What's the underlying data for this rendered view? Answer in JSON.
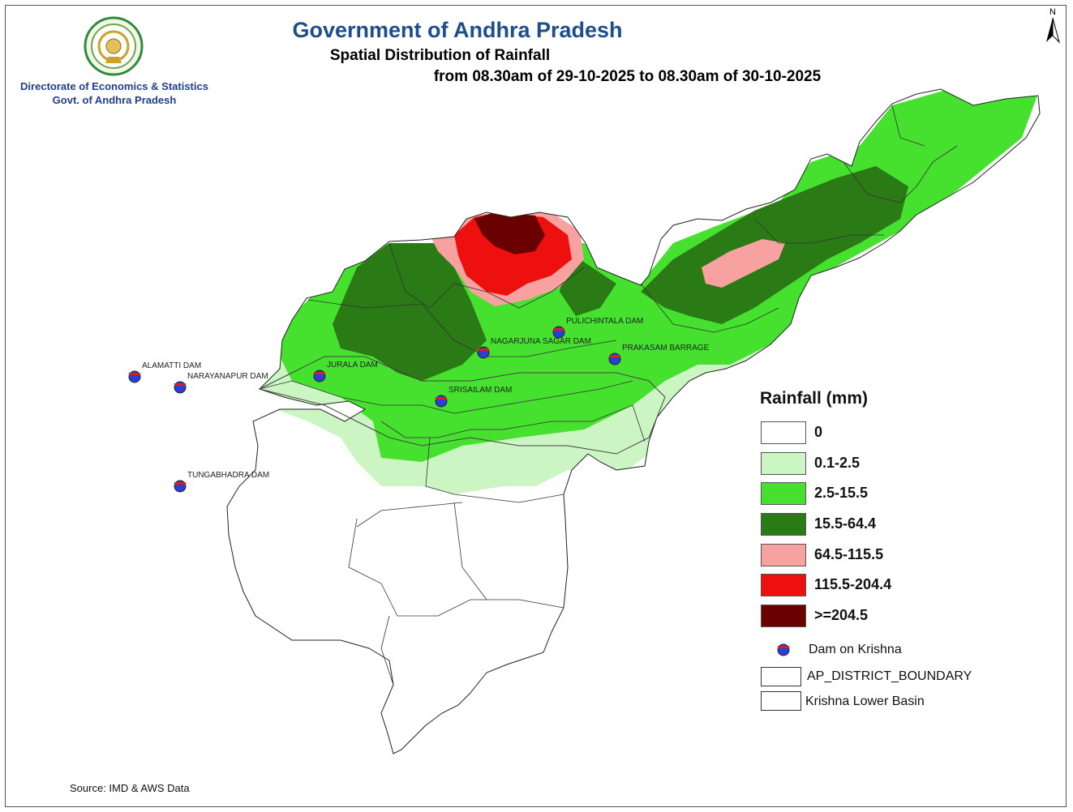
{
  "header": {
    "title": "Government of Andhra Pradesh",
    "subtitle": "Spatial Distribution of Rainfall",
    "period": "from 08.30am of 29-10-2025 to 08.30am of 30-10-2025"
  },
  "organization": {
    "line1": "Directorate of Economics & Statistics",
    "line2": "Govt. of Andhra Pradesh"
  },
  "north_arrow": {
    "label": "N"
  },
  "legend": {
    "title": "Rainfall (mm)",
    "classes": [
      {
        "label": "0",
        "color": "#ffffff"
      },
      {
        "label": "0.1-2.5",
        "color": "#ccf5c4"
      },
      {
        "label": "2.5-15.5",
        "color": "#46e02e"
      },
      {
        "label": "15.5-64.4",
        "color": "#2a7a16"
      },
      {
        "label": "64.5-115.5",
        "color": "#f7a1a0"
      },
      {
        "label": "115.5-204.4",
        "color": "#ee0f0f"
      },
      {
        "label": ">=204.5",
        "color": "#6b0000"
      }
    ],
    "dam_symbol_label": "Dam on Krishna",
    "district_boundary_label": "AP_DISTRICT_BOUNDARY",
    "basin_label": "Krishna Lower Basin"
  },
  "dams": [
    {
      "name": "ALAMATTI  DAM"
    },
    {
      "name": "NARAYANAPUR DAM"
    },
    {
      "name": "JURALA DAM"
    },
    {
      "name": "SRISAILAM DAM"
    },
    {
      "name": "NAGARJUNA SAGAR DAM"
    },
    {
      "name": "PULICHINTALA DAM"
    },
    {
      "name": "PRAKASAM BARRAGE"
    },
    {
      "name": "TUNGABHADRA DAM"
    }
  ],
  "source": "Source: IMD & AWS Data",
  "colors": {
    "title": "#1f4e8c",
    "dam_fill": "#2b3fd6",
    "dam_cap": "#d42020"
  }
}
